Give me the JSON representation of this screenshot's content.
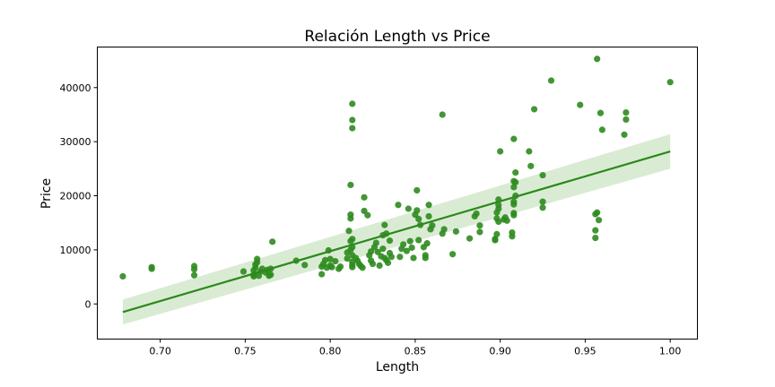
{
  "chart_data": {
    "type": "scatter",
    "title": "Relación Length vs Price",
    "xlabel": "Length",
    "ylabel": "Price",
    "xlim": [
      0.663,
      1.016
    ],
    "ylim": [
      -6500,
      47500
    ],
    "xticks": [
      0.7,
      0.75,
      0.8,
      0.85,
      0.9,
      0.95,
      1.0
    ],
    "xtick_labels": [
      "0.70",
      "0.75",
      "0.80",
      "0.85",
      "0.90",
      "0.95",
      "1.00"
    ],
    "yticks": [
      0,
      10000,
      20000,
      30000,
      40000
    ],
    "ytick_labels": [
      "0",
      "10000",
      "20000",
      "30000",
      "40000"
    ],
    "grid": false,
    "colors": {
      "points": "#2e8b1e",
      "line": "#2a8a1a",
      "band": "#d3e8cc"
    },
    "regression": {
      "x": [
        0.678,
        1.0
      ],
      "y": [
        -1500,
        28200
      ],
      "ci_lower": [
        -3800,
        25000
      ],
      "ci_upper": [
        800,
        31400
      ]
    },
    "series": [
      {
        "x": [
          0.678,
          0.695,
          0.695,
          0.72,
          0.72,
          0.72,
          0.749,
          0.755,
          0.755,
          0.755,
          0.756,
          0.756,
          0.757,
          0.757,
          0.758,
          0.759,
          0.76,
          0.762,
          0.763,
          0.764,
          0.765,
          0.765,
          0.766,
          0.78,
          0.785,
          0.795,
          0.795,
          0.796,
          0.797,
          0.798,
          0.799,
          0.8,
          0.8,
          0.801,
          0.803,
          0.805,
          0.806,
          0.81,
          0.81,
          0.811,
          0.812,
          0.812,
          0.812,
          0.812,
          0.812,
          0.813,
          0.813,
          0.813,
          0.813,
          0.813,
          0.813,
          0.813,
          0.813,
          0.813,
          0.815,
          0.816,
          0.817,
          0.818,
          0.819,
          0.82,
          0.82,
          0.822,
          0.823,
          0.824,
          0.824,
          0.825,
          0.826,
          0.827,
          0.828,
          0.829,
          0.83,
          0.831,
          0.831,
          0.832,
          0.832,
          0.833,
          0.833,
          0.834,
          0.835,
          0.835,
          0.836,
          0.84,
          0.841,
          0.842,
          0.843,
          0.845,
          0.846,
          0.847,
          0.848,
          0.849,
          0.85,
          0.851,
          0.851,
          0.852,
          0.852,
          0.853,
          0.855,
          0.856,
          0.856,
          0.857,
          0.858,
          0.858,
          0.859,
          0.86,
          0.866,
          0.866,
          0.867,
          0.872,
          0.874,
          0.882,
          0.885,
          0.886,
          0.888,
          0.888,
          0.897,
          0.897,
          0.898,
          0.898,
          0.898,
          0.899,
          0.899,
          0.899,
          0.899,
          0.9,
          0.902,
          0.903,
          0.904,
          0.907,
          0.907,
          0.908,
          0.908,
          0.908,
          0.908,
          0.908,
          0.908,
          0.908,
          0.909,
          0.909,
          0.909,
          0.917,
          0.918,
          0.92,
          0.925,
          0.925,
          0.925,
          0.93,
          0.947,
          0.956,
          0.956,
          0.956,
          0.957,
          0.957,
          0.958,
          0.959,
          0.96,
          0.973,
          0.974,
          0.974,
          1.0
        ],
        "y": [
          5100,
          6500,
          6800,
          5300,
          6400,
          7000,
          6000,
          5100,
          5400,
          6200,
          6700,
          7300,
          7700,
          8300,
          5200,
          6000,
          6500,
          5800,
          6300,
          5200,
          6500,
          5400,
          11500,
          8000,
          7200,
          5500,
          6900,
          7400,
          8100,
          6700,
          9900,
          7100,
          8300,
          6800,
          7900,
          6500,
          6900,
          8400,
          9500,
          13500,
          10000,
          11600,
          15800,
          16500,
          22000,
          32500,
          34000,
          37000,
          12000,
          10500,
          9000,
          7800,
          7200,
          6800,
          8500,
          8000,
          7400,
          7000,
          6700,
          17200,
          19700,
          16400,
          9000,
          8000,
          9700,
          7400,
          10500,
          11300,
          9600,
          7100,
          8800,
          10200,
          12700,
          14600,
          8500,
          13000,
          8100,
          7600,
          11700,
          9400,
          8700,
          18300,
          8700,
          10200,
          11000,
          9800,
          17600,
          11600,
          10400,
          8500,
          16500,
          17300,
          21000,
          15700,
          11800,
          14600,
          10500,
          9000,
          8500,
          11200,
          16200,
          18300,
          13800,
          14500,
          35000,
          13000,
          13800,
          9200,
          13400,
          12100,
          16200,
          16700,
          13300,
          14500,
          12000,
          11800,
          12900,
          15800,
          16900,
          17600,
          18300,
          19300,
          15200,
          28200,
          15600,
          16000,
          15400,
          12500,
          13200,
          16400,
          16800,
          18400,
          18900,
          21600,
          22700,
          30500,
          24300,
          20000,
          22500,
          28200,
          25500,
          36000,
          17800,
          18900,
          23800,
          41300,
          36800,
          12200,
          13600,
          16600,
          16900,
          45300,
          15500,
          35300,
          32200,
          31300,
          34100,
          35400,
          41000
        ]
      }
    ]
  }
}
